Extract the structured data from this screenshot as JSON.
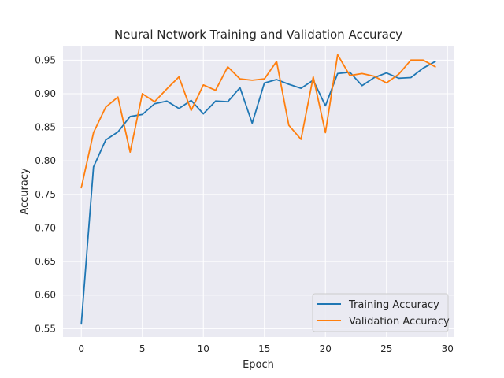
{
  "chart_data": {
    "type": "line",
    "title": "Neural Network Training and Validation Accuracy",
    "xlabel": "Epoch",
    "ylabel": "Accuracy",
    "xlim": [
      -1.5,
      30.5
    ],
    "ylim": [
      0.5375,
      0.9715
    ],
    "xticks": [
      0,
      5,
      10,
      15,
      20,
      25,
      30
    ],
    "xtick_labels": [
      "0",
      "5",
      "10",
      "15",
      "20",
      "25",
      "30"
    ],
    "yticks": [
      0.55,
      0.6,
      0.65,
      0.7,
      0.75,
      0.8,
      0.85,
      0.9,
      0.95
    ],
    "ytick_labels": [
      "0.55",
      "0.60",
      "0.65",
      "0.70",
      "0.75",
      "0.80",
      "0.85",
      "0.90",
      "0.95"
    ],
    "grid": true,
    "legend_position": "bottom-right",
    "x": [
      0,
      1,
      2,
      3,
      4,
      5,
      6,
      7,
      8,
      9,
      10,
      11,
      12,
      13,
      14,
      15,
      16,
      17,
      18,
      19,
      20,
      21,
      22,
      23,
      24,
      25,
      26,
      27,
      28,
      29
    ],
    "series": [
      {
        "name": "Training Accuracy",
        "color": "#1f77b4",
        "values": [
          0.557,
          0.791,
          0.831,
          0.843,
          0.866,
          0.869,
          0.885,
          0.889,
          0.878,
          0.89,
          0.87,
          0.889,
          0.888,
          0.909,
          0.856,
          0.916,
          0.921,
          0.914,
          0.908,
          0.92,
          0.882,
          0.93,
          0.932,
          0.912,
          0.924,
          0.931,
          0.923,
          0.924,
          0.938,
          0.948
        ]
      },
      {
        "name": "Validation Accuracy",
        "color": "#ff7f0e",
        "values": [
          0.76,
          0.842,
          0.88,
          0.895,
          0.813,
          0.9,
          0.888,
          0.907,
          0.925,
          0.875,
          0.913,
          0.905,
          0.94,
          0.922,
          0.92,
          0.922,
          0.948,
          0.853,
          0.832,
          0.925,
          0.842,
          0.958,
          0.927,
          0.93,
          0.926,
          0.916,
          0.929,
          0.95,
          0.95,
          0.94
        ]
      }
    ]
  }
}
